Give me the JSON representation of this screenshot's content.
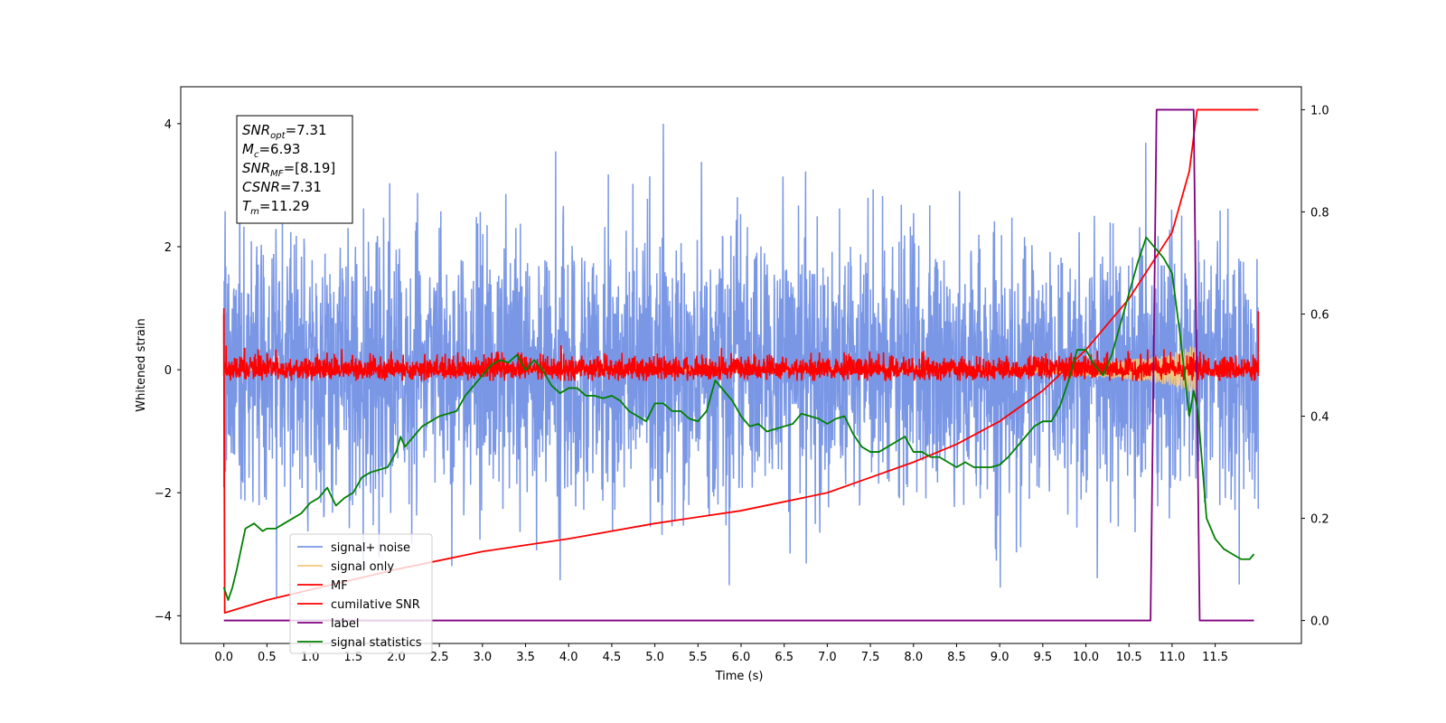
{
  "chart_data": {
    "type": "line",
    "xlabel": "Time (s)",
    "ylabel": "Whitened strain",
    "xlim": [
      -0.5,
      12.5
    ],
    "ylim": [
      -4.45,
      4.6
    ],
    "y2lim": [
      -0.045,
      1.045
    ],
    "x_ticks": [
      0.0,
      0.5,
      1.0,
      1.5,
      2.0,
      2.5,
      3.0,
      3.5,
      4.0,
      4.5,
      5.0,
      5.5,
      6.0,
      6.5,
      7.0,
      7.5,
      8.0,
      8.5,
      9.0,
      9.5,
      10.0,
      10.5,
      11.0,
      11.5
    ],
    "x_tick_labels": [
      "0.0",
      "0.5",
      "1.0",
      "1.5",
      "2.0",
      "2.5",
      "3.0",
      "3.5",
      "4.0",
      "4.5",
      "5.0",
      "5.5",
      "6.0",
      "6.5",
      "7.0",
      "7.5",
      "8.0",
      "8.5",
      "9.0",
      "9.5",
      "10.0",
      "10.5",
      "11.0",
      "11.5"
    ],
    "y_ticks": [
      -4,
      -2,
      0,
      2,
      4
    ],
    "y_tick_labels": [
      "−4",
      "−2",
      "0",
      "2",
      "4"
    ],
    "y2_ticks": [
      0.0,
      0.2,
      0.4,
      0.6,
      0.8,
      1.0
    ],
    "y2_tick_labels": [
      "0.0",
      "0.2",
      "0.4",
      "0.6",
      "0.8",
      "1.0"
    ],
    "grid": false,
    "legend_position": "lower-left",
    "annotation": {
      "lines": [
        {
          "base": "SNR",
          "sub": "opt",
          "rest": "=7.31"
        },
        {
          "base": "M",
          "sub": "c",
          "rest": "=6.93"
        },
        {
          "base": "SNR",
          "sub": "MF",
          "rest": "=[8.19]"
        },
        {
          "base": "CSNR",
          "sub": "",
          "rest": "=7.31"
        },
        {
          "base": "T",
          "sub": "m",
          "rest": "=11.29"
        }
      ]
    },
    "series": [
      {
        "name": "signal+ noise",
        "axis": "left",
        "color": "#7391e5",
        "kind": "noise",
        "x_range": [
          0.0,
          12.0
        ],
        "std": 1.0,
        "approx_min": -4.0,
        "approx_max": 4.18
      },
      {
        "name": "signal only",
        "axis": "left",
        "color": "#f5c77e",
        "kind": "chirp",
        "x_range": [
          0.0,
          11.3
        ],
        "envelope": [
          [
            0.0,
            0.0
          ],
          [
            9.0,
            0.03
          ],
          [
            9.5,
            0.07
          ],
          [
            10.0,
            0.11
          ],
          [
            10.5,
            0.16
          ],
          [
            11.0,
            0.26
          ],
          [
            11.29,
            0.42
          ],
          [
            11.3,
            0.0
          ]
        ]
      },
      {
        "name": "MF",
        "axis": "left",
        "color": "#ff0000",
        "kind": "noise",
        "x_range": [
          0.0,
          12.0
        ],
        "std": 0.09,
        "approx_min": -0.18,
        "approx_max": 0.45
      },
      {
        "name": "cumilative SNR",
        "axis": "right",
        "color": "#ff0000",
        "x": [
          0.0,
          0.01,
          0.5,
          1.0,
          2.0,
          3.0,
          4.0,
          5.0,
          6.0,
          7.0,
          7.5,
          8.0,
          8.5,
          9.0,
          9.5,
          10.0,
          10.5,
          11.0,
          11.2,
          11.29,
          11.3,
          12.0
        ],
        "y": [
          0.6,
          0.015,
          0.04,
          0.06,
          0.1,
          0.135,
          0.16,
          0.19,
          0.215,
          0.25,
          0.28,
          0.31,
          0.345,
          0.39,
          0.45,
          0.53,
          0.63,
          0.76,
          0.88,
          1.0,
          1.0,
          1.0
        ]
      },
      {
        "name": "label",
        "axis": "right",
        "color": "#800080",
        "x": [
          0.0,
          10.75,
          10.82,
          11.25,
          11.32,
          11.95
        ],
        "y": [
          0.0,
          0.0,
          1.0,
          1.0,
          0.0,
          0.0
        ]
      },
      {
        "name": "signal statistics",
        "axis": "right",
        "color": "#008000",
        "x": [
          0.0,
          0.05,
          0.1,
          0.15,
          0.25,
          0.35,
          0.45,
          0.5,
          0.6,
          0.7,
          0.8,
          0.9,
          1.0,
          1.1,
          1.2,
          1.3,
          1.4,
          1.5,
          1.6,
          1.7,
          1.8,
          1.9,
          2.0,
          2.05,
          2.1,
          2.2,
          2.3,
          2.4,
          2.5,
          2.6,
          2.7,
          2.8,
          2.9,
          3.0,
          3.1,
          3.2,
          3.3,
          3.4,
          3.5,
          3.6,
          3.7,
          3.8,
          3.9,
          4.0,
          4.1,
          4.2,
          4.3,
          4.4,
          4.5,
          4.6,
          4.7,
          4.8,
          4.9,
          5.0,
          5.1,
          5.2,
          5.3,
          5.4,
          5.5,
          5.6,
          5.7,
          5.8,
          5.9,
          6.0,
          6.1,
          6.2,
          6.3,
          6.4,
          6.5,
          6.6,
          6.7,
          6.8,
          6.9,
          7.0,
          7.1,
          7.2,
          7.3,
          7.4,
          7.5,
          7.6,
          7.7,
          7.8,
          7.9,
          8.0,
          8.1,
          8.2,
          8.3,
          8.4,
          8.5,
          8.6,
          8.7,
          8.8,
          8.9,
          9.0,
          9.1,
          9.2,
          9.3,
          9.4,
          9.5,
          9.6,
          9.7,
          9.8,
          9.9,
          10.0,
          10.1,
          10.2,
          10.3,
          10.4,
          10.5,
          10.6,
          10.7,
          10.8,
          10.9,
          11.0,
          11.1,
          11.2,
          11.25,
          11.3,
          11.4,
          11.5,
          11.6,
          11.7,
          11.8,
          11.9,
          11.95
        ],
        "y": [
          0.065,
          0.04,
          0.065,
          0.1,
          0.18,
          0.19,
          0.175,
          0.18,
          0.18,
          0.19,
          0.2,
          0.21,
          0.23,
          0.24,
          0.26,
          0.225,
          0.24,
          0.25,
          0.28,
          0.29,
          0.295,
          0.3,
          0.33,
          0.36,
          0.34,
          0.36,
          0.38,
          0.39,
          0.4,
          0.405,
          0.41,
          0.44,
          0.46,
          0.48,
          0.5,
          0.51,
          0.505,
          0.52,
          0.49,
          0.51,
          0.49,
          0.46,
          0.445,
          0.455,
          0.455,
          0.44,
          0.44,
          0.435,
          0.44,
          0.43,
          0.41,
          0.4,
          0.39,
          0.425,
          0.425,
          0.41,
          0.41,
          0.395,
          0.39,
          0.41,
          0.47,
          0.45,
          0.43,
          0.4,
          0.38,
          0.385,
          0.37,
          0.375,
          0.38,
          0.385,
          0.405,
          0.4,
          0.395,
          0.385,
          0.395,
          0.4,
          0.365,
          0.34,
          0.33,
          0.33,
          0.34,
          0.35,
          0.36,
          0.33,
          0.33,
          0.32,
          0.32,
          0.31,
          0.3,
          0.31,
          0.3,
          0.3,
          0.3,
          0.305,
          0.32,
          0.34,
          0.36,
          0.38,
          0.39,
          0.39,
          0.42,
          0.47,
          0.53,
          0.53,
          0.5,
          0.48,
          0.52,
          0.58,
          0.64,
          0.7,
          0.75,
          0.73,
          0.71,
          0.68,
          0.55,
          0.4,
          0.45,
          0.41,
          0.2,
          0.16,
          0.14,
          0.13,
          0.12,
          0.12,
          0.13
        ]
      }
    ]
  }
}
